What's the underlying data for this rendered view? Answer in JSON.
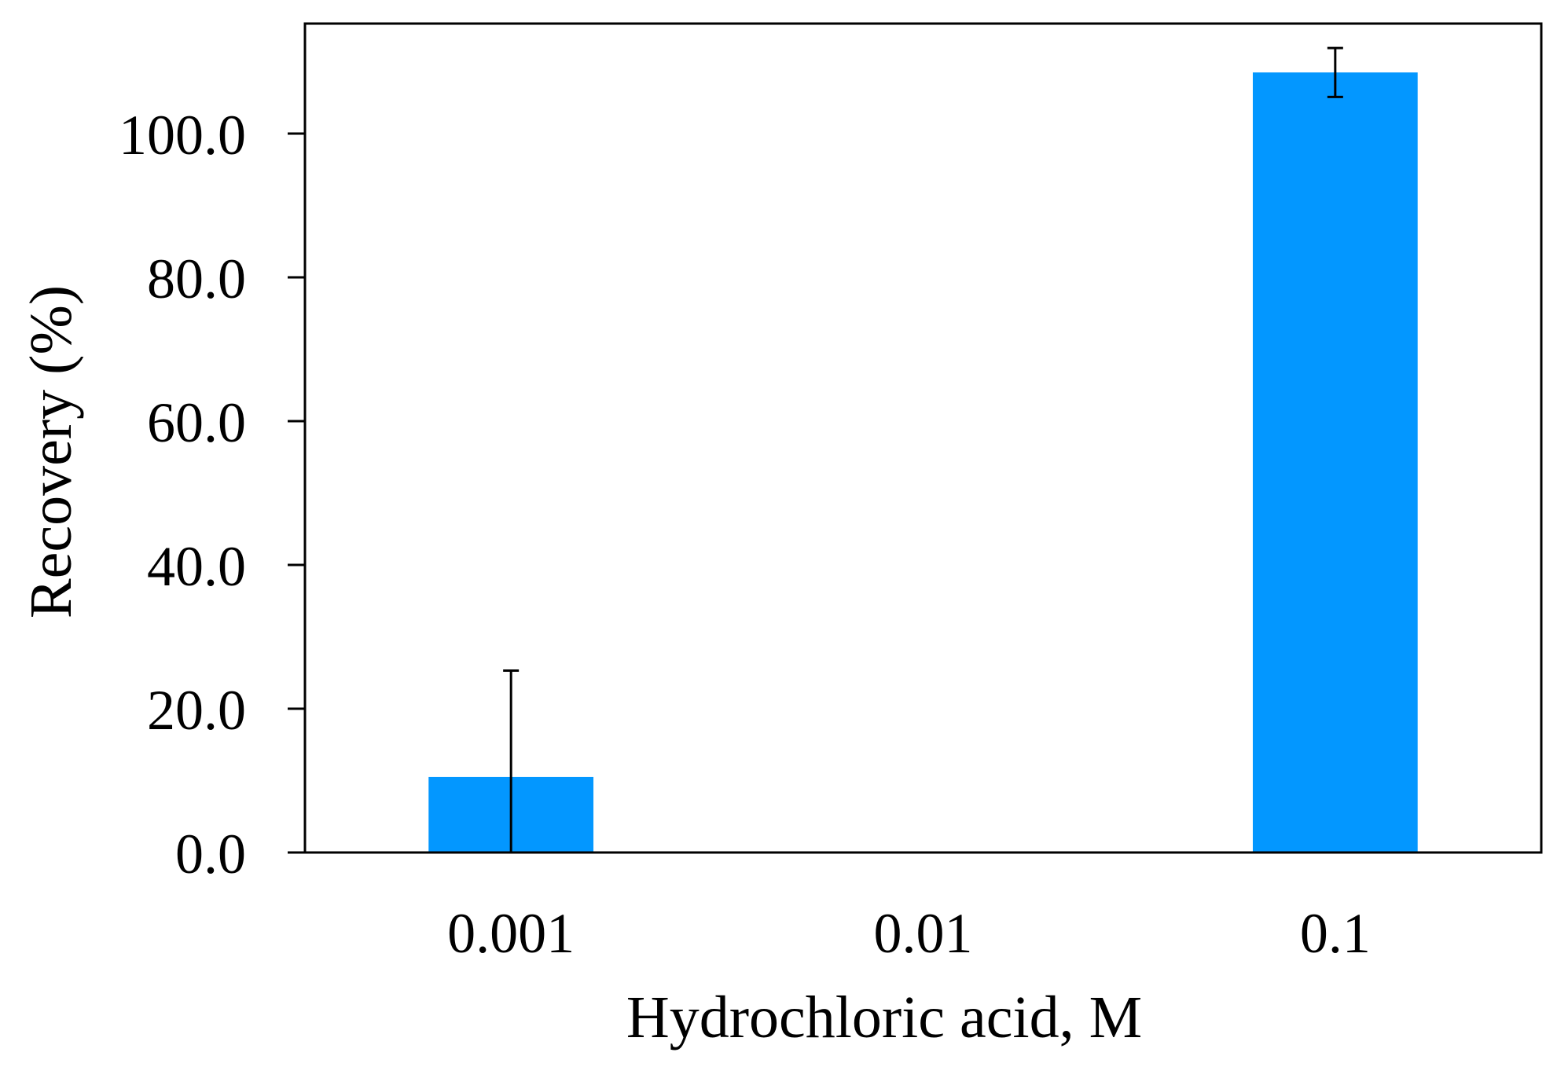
{
  "chart_data": {
    "type": "bar",
    "categories": [
      "0.001",
      "0.01",
      "0.1"
    ],
    "series": [
      {
        "values": [
          10.5,
          0.0,
          108.5
        ],
        "error": [
          14.8,
          0.0,
          3.4
        ]
      }
    ],
    "xlabel": "Hydrochloric acid, M",
    "ylabel": "Recovery (%)",
    "ylim": [
      0,
      115.3
    ],
    "yticks": [
      0.0,
      20.0,
      40.0,
      60.0,
      80.0,
      100.0
    ],
    "ytick_labels": [
      "0.0",
      "20.0",
      "40.0",
      "60.0",
      "80.0",
      "100.0"
    ],
    "grid": false,
    "legend": "none",
    "colors": {
      "bar": "#0397FF",
      "axis": "#000000",
      "error_bar": "#000000"
    }
  }
}
